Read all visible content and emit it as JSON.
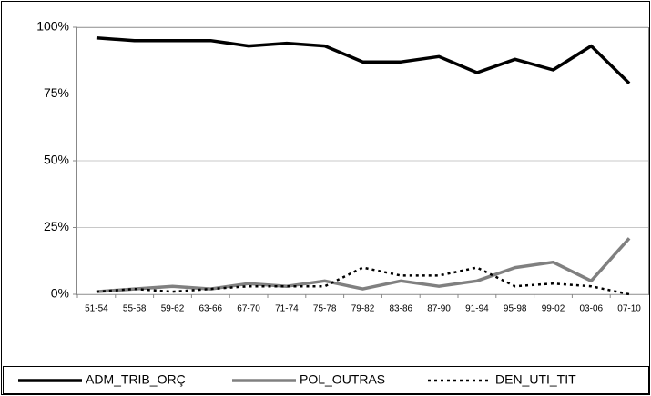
{
  "chart_data": {
    "type": "line",
    "categories": [
      "51-54",
      "55-58",
      "59-62",
      "63-66",
      "67-70",
      "71-74",
      "75-78",
      "79-82",
      "83-86",
      "87-90",
      "91-94",
      "95-98",
      "99-02",
      "03-06",
      "07-10"
    ],
    "series": [
      {
        "name": "ADM_TRIB_ORÇ",
        "color": "#000000",
        "style": "solid",
        "values": [
          96,
          95,
          95,
          95,
          93,
          94,
          93,
          87,
          87,
          89,
          83,
          88,
          84,
          93,
          79
        ]
      },
      {
        "name": "POL_OUTRAS",
        "color": "#808080",
        "style": "solid",
        "values": [
          1,
          2,
          3,
          2,
          4,
          3,
          5,
          2,
          5,
          3,
          5,
          10,
          12,
          5,
          21
        ]
      },
      {
        "name": "DEN_UTI_TIT",
        "color": "#000000",
        "style": "dotted",
        "values": [
          1,
          2,
          1,
          2,
          3,
          3,
          3,
          10,
          7,
          7,
          10,
          3,
          4,
          3,
          0
        ]
      }
    ],
    "ylim": [
      0,
      100
    ],
    "yticks": [
      {
        "value": 0,
        "label": "0%"
      },
      {
        "value": 25,
        "label": "25%"
      },
      {
        "value": 50,
        "label": "50%"
      },
      {
        "value": 75,
        "label": "75%"
      },
      {
        "value": 100,
        "label": "100%"
      }
    ],
    "grid": true,
    "legend": "bottom"
  }
}
